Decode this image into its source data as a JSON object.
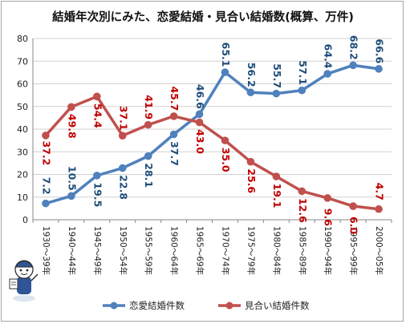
{
  "chart_data": {
    "type": "line",
    "title": "結婚年次別にみた、恋愛結婚・見合い結婚数(概算、万件)",
    "xlabel": "",
    "ylabel": "",
    "ylim": [
      0,
      80
    ],
    "yticks": [
      0,
      10,
      20,
      30,
      40,
      50,
      60,
      70,
      80
    ],
    "grid": true,
    "legend_position": "bottom",
    "categories": [
      "1930〜39年",
      "1940〜44年",
      "1945〜49年",
      "1950〜54年",
      "1955〜59年",
      "1960〜64年",
      "1965〜69年",
      "1970〜74年",
      "1975〜79年",
      "1980〜84年",
      "1985〜89年",
      "1990〜94年",
      "1995〜99年",
      "2000〜05年"
    ],
    "series": [
      {
        "name": "恋愛結婚件数",
        "color": "#4f81bd",
        "label_color": "#1f4e79",
        "values": [
          7.2,
          10.5,
          19.5,
          22.8,
          28.1,
          37.7,
          46.6,
          65.1,
          56.2,
          55.7,
          57.1,
          64.4,
          68.2,
          66.6
        ],
        "labels": [
          "7.2",
          "10.5",
          "19.5",
          "22.8",
          "28.1",
          "37.7",
          "46.6",
          "65.1",
          "56.2",
          "55.7",
          "57.1",
          "64.4",
          "68.2",
          "66.6"
        ]
      },
      {
        "name": "見合い結婚件数",
        "color": "#c0504d",
        "label_color": "#c00000",
        "values": [
          37.2,
          49.8,
          54.4,
          37.1,
          41.9,
          45.7,
          43.0,
          35.0,
          25.6,
          19.1,
          12.6,
          9.6,
          6.0,
          4.7
        ],
        "labels": [
          "37.2",
          "49.8",
          "54.4",
          "37.1",
          "41.9",
          "45.7",
          "43.0",
          "35.0",
          "25.6",
          "19.1",
          "12.6",
          "9.6",
          "6.0",
          "4.7"
        ]
      }
    ]
  }
}
